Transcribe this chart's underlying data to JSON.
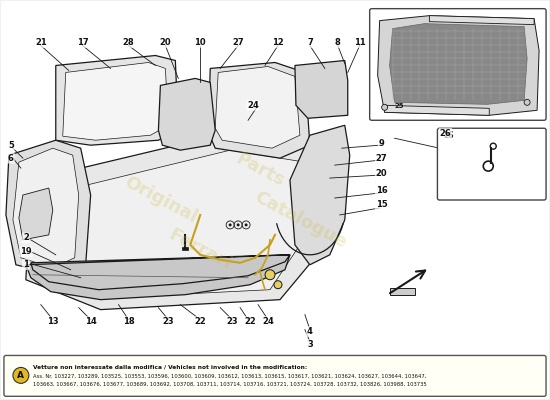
{
  "bg_color": "#f0f0f0",
  "diagram_bg": "#ffffff",
  "line_color": "#1a1a1a",
  "light_line": "#555555",
  "fill_light": "#e8e8e8",
  "fill_white": "#f8f8f8",
  "yellow_line": "#c8a020",
  "bottom_box": {
    "text_line1": "Vetture non interessate dalla modifica / Vehicles not involved in the modification:",
    "text_line2": "Ass. Nr. 103227, 103289, 103525, 103553, 103596, 103600, 103609, 103612, 103613, 103615, 103617, 103621, 103624, 103627, 103644, 103647,",
    "text_line3": "103663, 103667, 103676, 103677, 103689, 103692, 103708, 103711, 103714, 103716, 103721, 103724, 103728, 103732, 103826, 103988, 103735"
  }
}
